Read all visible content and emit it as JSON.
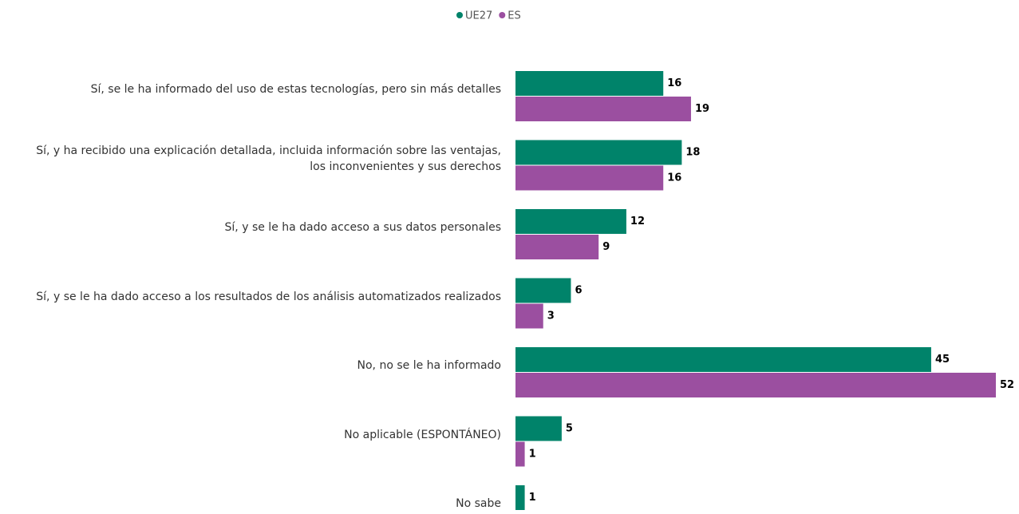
{
  "chart_data": {
    "type": "bar",
    "orientation": "horizontal",
    "categories": [
      "Sí, se le ha informado del uso de estas tecnologías, pero sin más detalles",
      "Sí, y ha recibido una explicación detallada, incluida información sobre las ventajas,\nlos inconvenientes y sus derechos",
      "Sí, y se le ha dado acceso a sus datos personales",
      "Sí, y se le ha dado acceso a los resultados de los análisis automatizados realizados",
      "No, no se le ha informado",
      "No aplicable (ESPONTÁNEO)",
      "No sabe"
    ],
    "series": [
      {
        "name": "UE27",
        "color": "#00836a",
        "values": [
          16,
          18,
          12,
          6,
          45,
          5,
          1
        ]
      },
      {
        "name": "ES",
        "color": "#9b4fa0",
        "values": [
          19,
          16,
          9,
          3,
          52,
          1,
          null
        ]
      }
    ],
    "legend": "top"
  }
}
